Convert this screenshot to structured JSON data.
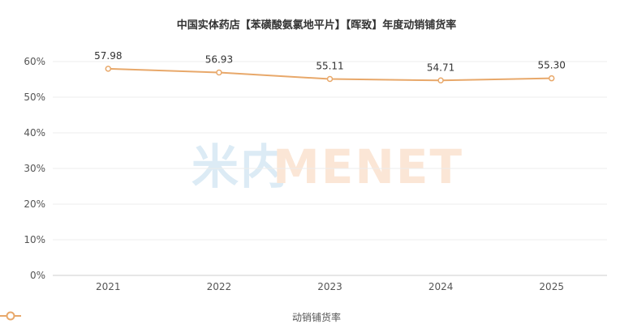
{
  "chart_data": {
    "type": "line",
    "title": "中国实体药店【苯磺酸氨氯地平片】【晖致】年度动销铺货率",
    "categories": [
      "2021",
      "2022",
      "2023",
      "2024",
      "2025"
    ],
    "series": [
      {
        "name": "动销铺货率",
        "values": [
          57.98,
          56.93,
          55.11,
          54.71,
          55.3
        ],
        "color": "#E8A86A"
      }
    ],
    "data_labels": [
      "57.98",
      "56.93",
      "55.11",
      "54.71",
      "55.30"
    ],
    "y_ticks": [
      "0%",
      "10%",
      "20%",
      "30%",
      "40%",
      "50%",
      "60%"
    ],
    "ylim": [
      0,
      60
    ],
    "grid": true,
    "legend_position": "bottom-center"
  },
  "watermark": {
    "cn_text": "米内",
    "en_text": "MENET",
    "cn_color": "#DCEBF5",
    "en_color": "#FBE6D6"
  }
}
